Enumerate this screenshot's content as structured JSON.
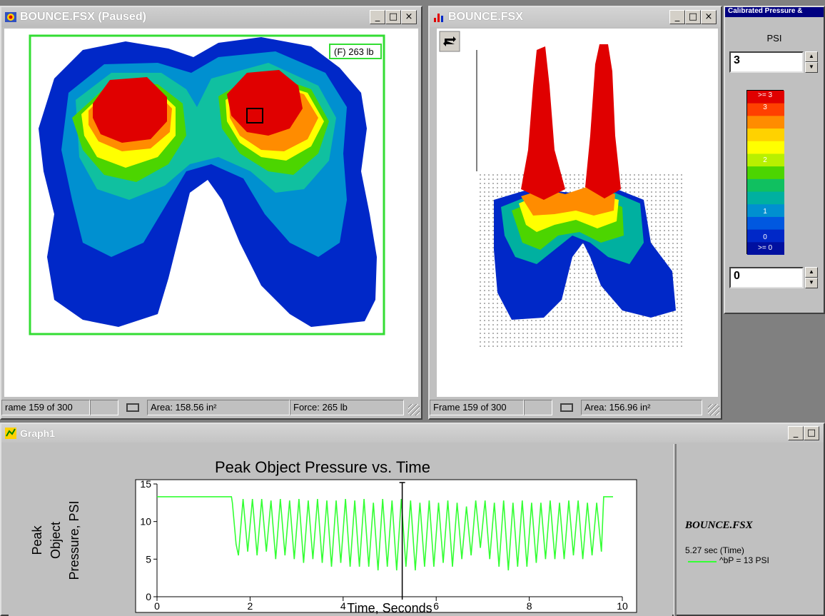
{
  "window2d": {
    "title": "BOUNCE.FSX (Paused)",
    "force_box": "(F) 263 lb",
    "status": {
      "frame": "rame 159 of 300",
      "area": "Area: 158.56 in²",
      "force": "Force: 265 lb"
    }
  },
  "window3d": {
    "title": "BOUNCE.FSX",
    "status": {
      "frame": "Frame 159 of 300",
      "area": "Area: 156.96 in²"
    }
  },
  "legend_panel": {
    "title": "Calibrated Pressure &",
    "units": "PSI",
    "max_value": "3",
    "min_value": "0",
    "scale_labels": [
      ">= 3",
      "3",
      "2",
      "1",
      "0",
      ">= 0"
    ]
  },
  "graph_window": {
    "title": "Graph1",
    "info": {
      "file": "BOUNCE.FSX",
      "time": "5.27 sec (Time)",
      "series_value": "^bP = 13 PSI"
    }
  },
  "colors": {
    "pressure_scale": [
      "#e00000",
      "#ff4000",
      "#ff8c00",
      "#ffd200",
      "#ffff00",
      "#b8f000",
      "#4cd500",
      "#10c060",
      "#00b0a0",
      "#0090d0",
      "#0058e0",
      "#0028c8",
      "#0010a0"
    ],
    "plot_line": "#33ff33",
    "frame_border": "#33dd33"
  },
  "chart_data": {
    "type": "line",
    "title": "Peak Object Pressure vs. Time",
    "xlabel": "Time, Seconds",
    "ylabel": "Peak Object Pressure, PSI",
    "xlim": [
      0,
      10
    ],
    "ylim": [
      0,
      15
    ],
    "xticks": [
      0,
      2,
      4,
      6,
      8,
      10
    ],
    "yticks": [
      0,
      5,
      10,
      15
    ],
    "cursor_x": 5.27,
    "series": [
      {
        "x": [
          0,
          1.6,
          1.62,
          1.7,
          1.75,
          1.85,
          1.95,
          2.05,
          2.15,
          2.25,
          2.35,
          2.45,
          2.55,
          2.65,
          2.75,
          2.85,
          2.95,
          3.05,
          3.15,
          3.25,
          3.35,
          3.45,
          3.55,
          3.65,
          3.75,
          3.85,
          3.95,
          4.05,
          4.15,
          4.25,
          4.35,
          4.45,
          4.55,
          4.65,
          4.75,
          4.85,
          4.95,
          5.05,
          5.15,
          5.25,
          5.35,
          5.45,
          5.55,
          5.65,
          5.75,
          5.85,
          5.95,
          6.05,
          6.15,
          6.25,
          6.35,
          6.45,
          6.55,
          6.65,
          6.75,
          6.85,
          6.95,
          7.05,
          7.15,
          7.25,
          7.35,
          7.45,
          7.55,
          7.65,
          7.75,
          7.85,
          7.95,
          8.05,
          8.15,
          8.25,
          8.35,
          8.45,
          8.55,
          8.65,
          8.75,
          8.85,
          8.95,
          9.05,
          9.15,
          9.25,
          9.35,
          9.45,
          9.55,
          9.6,
          9.7,
          9.8
        ],
        "y": [
          13.3,
          13.3,
          12.5,
          7.0,
          5.5,
          13.0,
          6.0,
          13.0,
          5.5,
          13.0,
          6.0,
          12.8,
          5.0,
          13.0,
          5.5,
          12.8,
          5.0,
          13.0,
          4.5,
          12.8,
          5.0,
          13.0,
          4.5,
          12.8,
          4.0,
          12.8,
          4.5,
          13.0,
          4.0,
          12.8,
          4.0,
          13.0,
          4.0,
          12.5,
          3.5,
          13.0,
          4.0,
          12.8,
          3.5,
          13.0,
          4.0,
          12.8,
          3.5,
          12.5,
          4.0,
          12.8,
          4.0,
          12.5,
          4.5,
          12.8,
          4.0,
          12.5,
          5.0,
          12.0,
          5.5,
          12.8,
          6.5,
          12.8,
          5.0,
          12.5,
          4.0,
          12.8,
          3.5,
          12.5,
          4.0,
          12.8,
          4.0,
          12.5,
          4.5,
          12.5,
          5.0,
          12.8,
          5.0,
          12.5,
          5.0,
          12.8,
          5.5,
          12.8,
          5.0,
          12.5,
          5.5,
          12.5,
          6.0,
          13.3,
          13.3,
          13.3
        ]
      }
    ]
  }
}
